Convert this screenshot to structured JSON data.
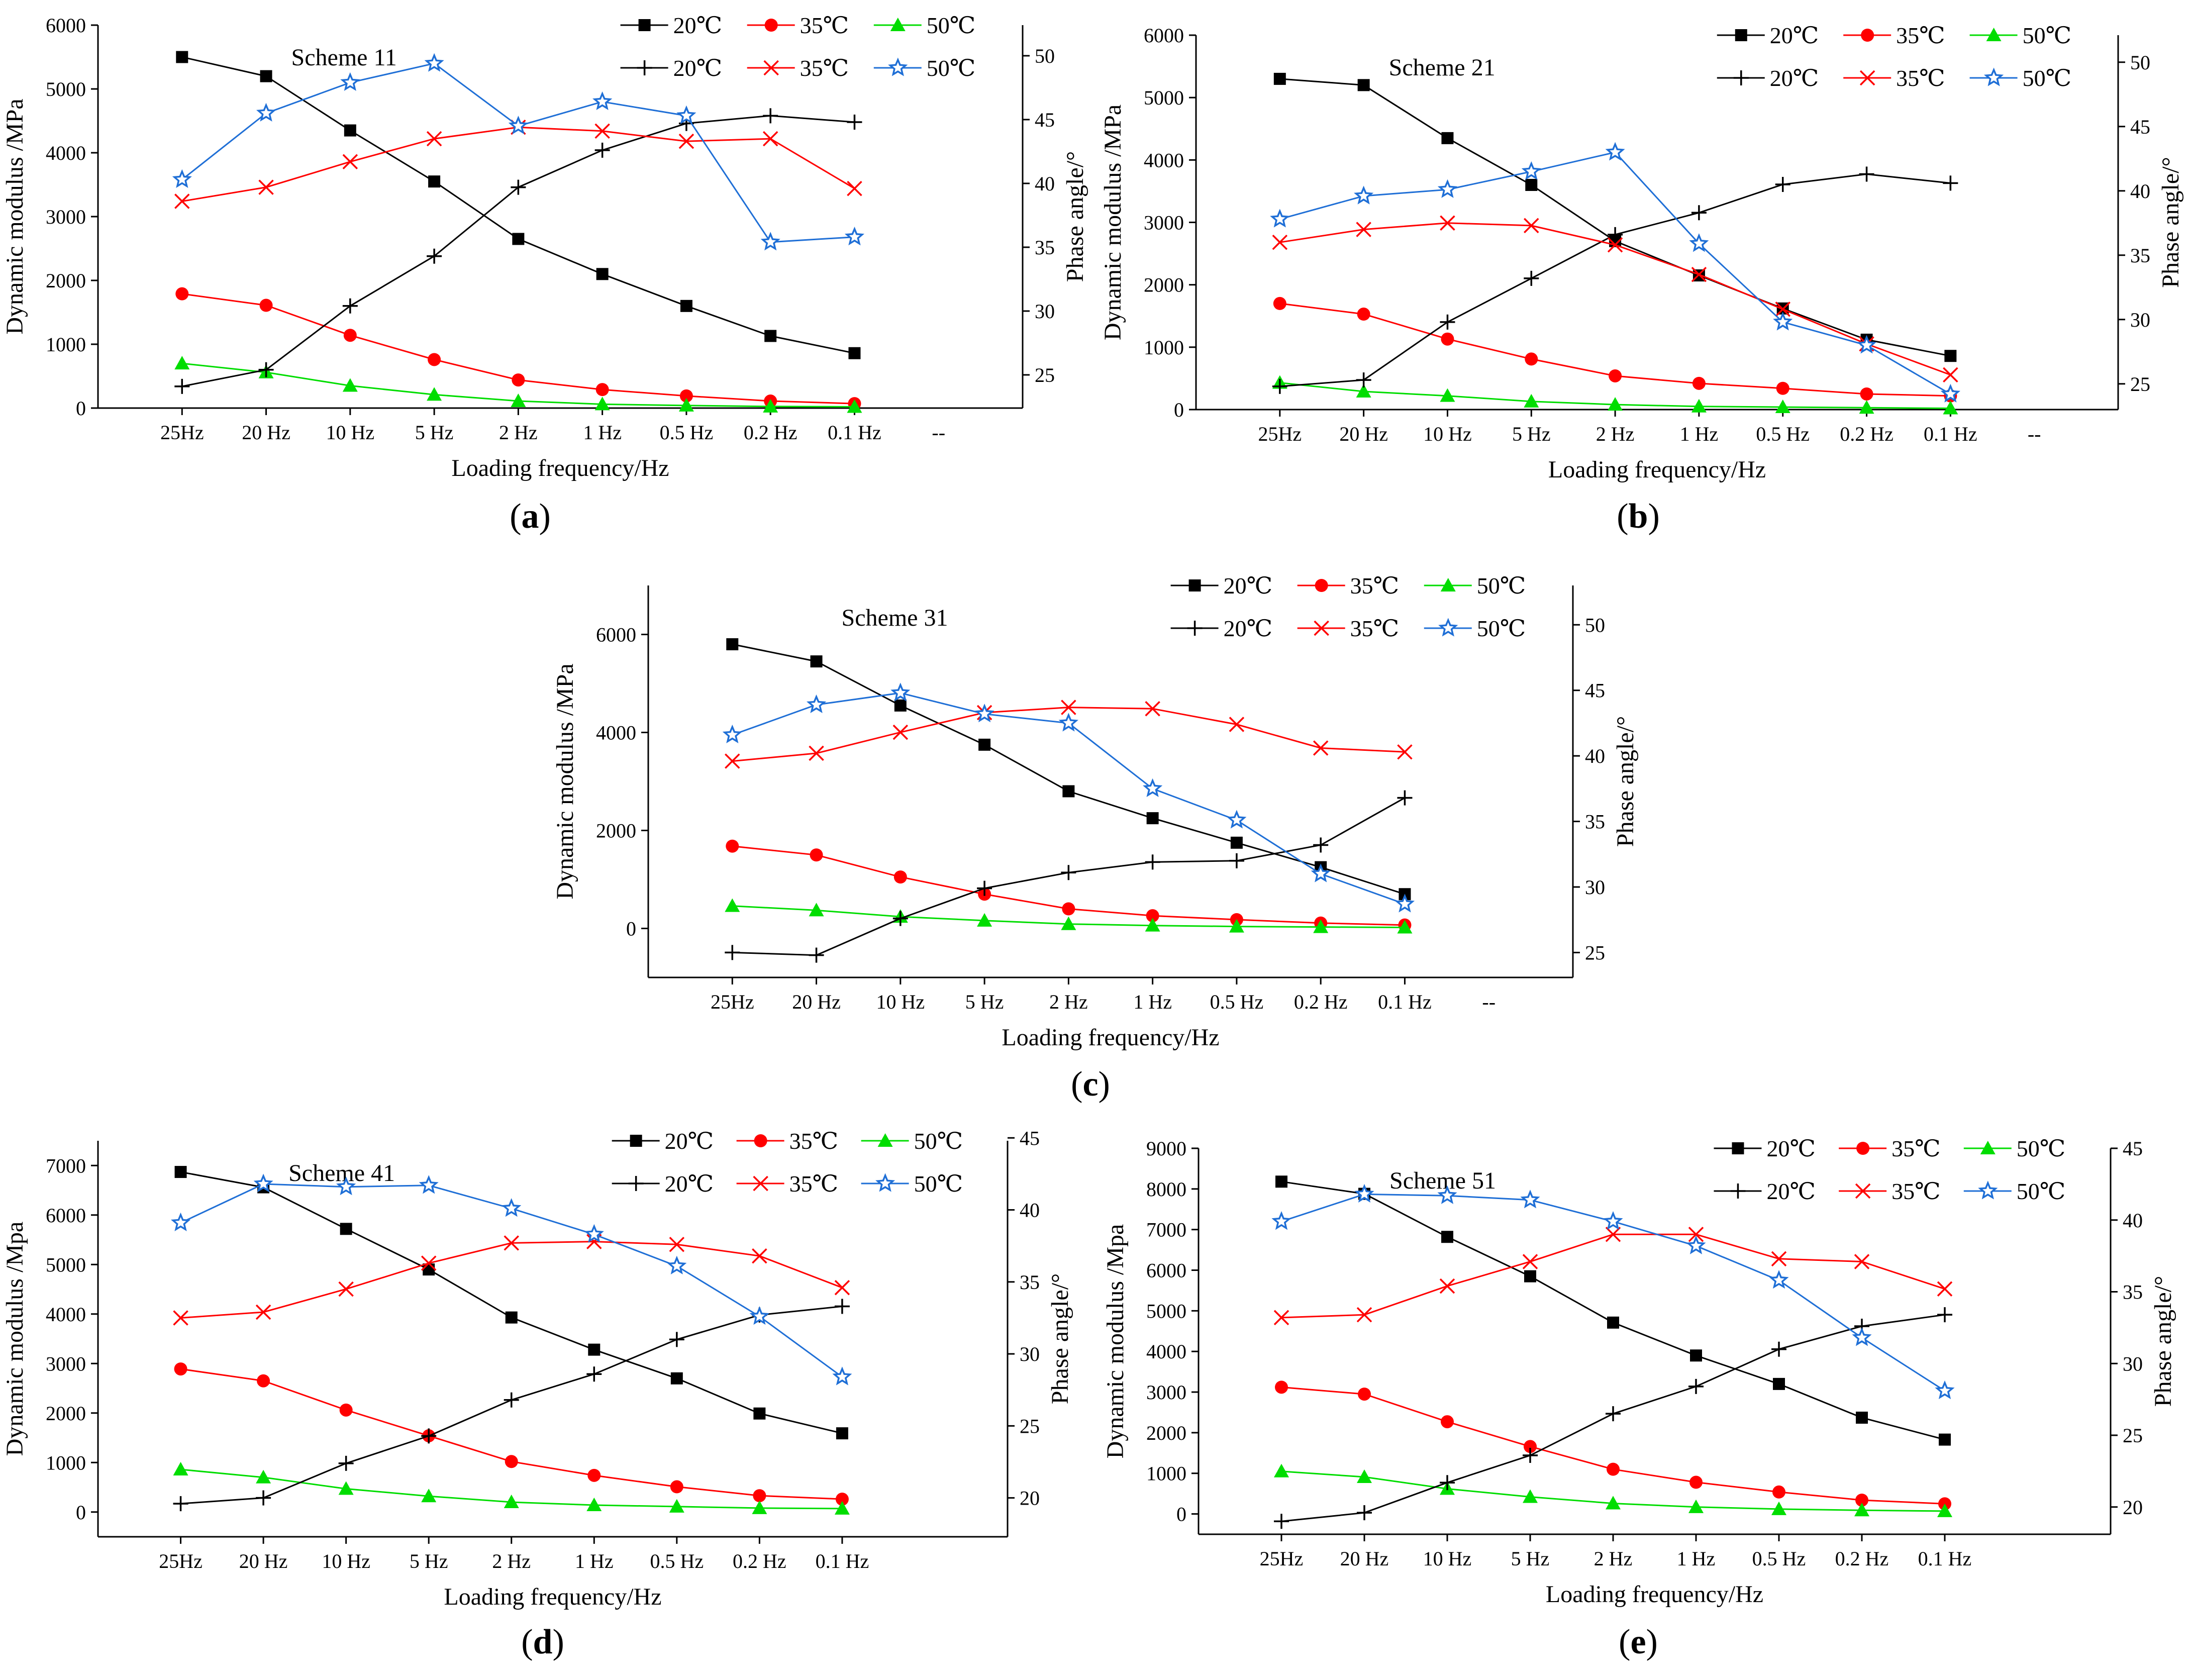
{
  "figure": {
    "colors": {
      "20C": "#000000",
      "35C": "#ff0000",
      "50C_modulus": "#00dd00",
      "50C_phase": "#1f6fd6",
      "axis": "#000000"
    },
    "icons": [
      "square-marker",
      "circle-marker",
      "triangle-marker",
      "plus-marker",
      "cross-marker",
      "star-marker"
    ]
  },
  "chart_data": [
    {
      "id": "a",
      "caption_letter": "a",
      "title": "Scheme 11",
      "type": "line",
      "xlabel": "Loading frequency/Hz",
      "ylabel_left": "Dynamic modulus /MPa",
      "ylabel_right": "Phase angle/°",
      "categories": [
        "25Hz",
        "20 Hz",
        "10 Hz",
        "5 Hz",
        "2 Hz",
        "1 Hz",
        "0.5 Hz",
        "0.2 Hz",
        "0.1 Hz"
      ],
      "extra_tick": "--",
      "ylim_left": [
        0,
        6000
      ],
      "yticks_left": [
        0,
        1000,
        2000,
        3000,
        4000,
        5000,
        6000
      ],
      "ylim_right": [
        22.4,
        52.4
      ],
      "yticks_right": [
        25,
        30,
        35,
        40,
        45,
        50
      ],
      "modulus_series": [
        {
          "name": "20℃",
          "values": [
            5500,
            5200,
            4350,
            3550,
            2650,
            2100,
            1600,
            1130,
            860
          ]
        },
        {
          "name": "35℃",
          "values": [
            1790,
            1610,
            1140,
            760,
            440,
            290,
            190,
            110,
            70
          ]
        },
        {
          "name": "50℃",
          "values": [
            700,
            560,
            350,
            210,
            110,
            60,
            40,
            25,
            20
          ]
        }
      ],
      "phase_series": [
        {
          "name": "20℃",
          "values": [
            24.1,
            25.4,
            30.4,
            34.3,
            39.7,
            42.6,
            44.7,
            45.3,
            44.8
          ]
        },
        {
          "name": "35℃",
          "values": [
            38.6,
            39.7,
            41.7,
            43.5,
            44.4,
            44.1,
            43.3,
            43.5,
            39.6
          ]
        },
        {
          "name": "50℃",
          "values": [
            40.3,
            45.5,
            47.9,
            49.4,
            44.5,
            46.4,
            45.3,
            35.4,
            35.8
          ]
        }
      ]
    },
    {
      "id": "b",
      "caption_letter": "b",
      "title": "Scheme 21",
      "type": "line",
      "xlabel": "Loading frequency/Hz",
      "ylabel_left": "Dynamic modulus /MPa",
      "ylabel_right": "Phase angle/°",
      "categories": [
        "25Hz",
        "20 Hz",
        "10 Hz",
        "5 Hz",
        "2 Hz",
        "1 Hz",
        "0.5 Hz",
        "0.2 Hz",
        "0.1 Hz"
      ],
      "extra_tick": "--",
      "ylim_left": [
        0,
        6000
      ],
      "yticks_left": [
        0,
        1000,
        2000,
        3000,
        4000,
        5000,
        6000
      ],
      "ylim_right": [
        23,
        52.1
      ],
      "yticks_right": [
        25,
        30,
        35,
        40,
        45,
        50
      ],
      "modulus_series": [
        {
          "name": "20℃",
          "values": [
            5300,
            5200,
            4350,
            3600,
            2700,
            2150,
            1620,
            1120,
            860
          ]
        },
        {
          "name": "35℃",
          "values": [
            1700,
            1530,
            1130,
            810,
            540,
            420,
            340,
            250,
            220
          ]
        },
        {
          "name": "50℃",
          "values": [
            430,
            290,
            220,
            130,
            80,
            50,
            40,
            30,
            20
          ]
        }
      ],
      "phase_series": [
        {
          "name": "20℃",
          "values": [
            24.8,
            25.3,
            29.8,
            33.2,
            36.6,
            38.3,
            40.5,
            41.3,
            40.6
          ]
        },
        {
          "name": "35℃",
          "values": [
            36.0,
            37.0,
            37.5,
            37.3,
            35.8,
            33.5,
            30.8,
            28.1,
            25.7
          ]
        },
        {
          "name": "50℃",
          "values": [
            37.8,
            39.6,
            40.1,
            41.5,
            43.0,
            35.9,
            29.8,
            28.0,
            24.2
          ]
        }
      ]
    },
    {
      "id": "c",
      "caption_letter": "c",
      "title": "Scheme 31",
      "type": "line",
      "xlabel": "Loading frequency/Hz",
      "ylabel_left": "Dynamic modulus /MPa",
      "ylabel_right": "Phase angle/°",
      "categories": [
        "25Hz",
        "20 Hz",
        "10 Hz",
        "5 Hz",
        "2 Hz",
        "1 Hz",
        "0.5 Hz",
        "0.2 Hz",
        "0.1 Hz"
      ],
      "extra_tick": "--",
      "ylim_left": [
        -1000,
        7000
      ],
      "yticks_left": [
        0,
        2000,
        4000,
        6000
      ],
      "ylim_right": [
        23.1,
        53.0
      ],
      "yticks_right": [
        25,
        30,
        35,
        40,
        45,
        50
      ],
      "modulus_series": [
        {
          "name": "20℃",
          "values": [
            5800,
            5450,
            4550,
            3750,
            2800,
            2250,
            1750,
            1250,
            700
          ]
        },
        {
          "name": "35℃",
          "values": [
            1680,
            1500,
            1050,
            700,
            400,
            260,
            180,
            110,
            70
          ]
        },
        {
          "name": "50℃",
          "values": [
            460,
            370,
            240,
            160,
            90,
            60,
            40,
            30,
            20
          ]
        }
      ],
      "phase_series": [
        {
          "name": "20℃",
          "values": [
            25.0,
            24.8,
            27.6,
            29.9,
            31.1,
            31.9,
            32.0,
            33.2,
            36.8
          ]
        },
        {
          "name": "35℃",
          "values": [
            39.6,
            40.2,
            41.8,
            43.3,
            43.7,
            43.6,
            42.4,
            40.6,
            40.3
          ]
        },
        {
          "name": "50℃",
          "values": [
            41.6,
            43.9,
            44.8,
            43.2,
            42.5,
            37.5,
            35.1,
            31.0,
            28.7
          ]
        }
      ]
    },
    {
      "id": "d",
      "caption_letter": "d",
      "title": "Scheme 41",
      "type": "line",
      "xlabel": "Loading frequency/Hz",
      "ylabel_left": "Dynamic modulus /Mpa",
      "ylabel_right": "Phase angle/°",
      "categories": [
        "25Hz",
        "20 Hz",
        "10 Hz",
        "5 Hz",
        "2 Hz",
        "1 Hz",
        "0.5 Hz",
        "0.2 Hz",
        "0.1 Hz"
      ],
      "extra_tick": "",
      "ylim_left": [
        -500,
        7500
      ],
      "yticks_left": [
        0,
        1000,
        2000,
        3000,
        4000,
        5000,
        6000,
        7000
      ],
      "ylim_right": [
        17.3,
        44.8
      ],
      "yticks_right": [
        20,
        25,
        30,
        35,
        40,
        45
      ],
      "modulus_series": [
        {
          "name": "20℃",
          "values": [
            6870,
            6560,
            5720,
            4900,
            3930,
            3280,
            2700,
            1990,
            1590
          ]
        },
        {
          "name": "35℃",
          "values": [
            2890,
            2650,
            2060,
            1540,
            1020,
            740,
            510,
            330,
            260
          ]
        },
        {
          "name": "50℃",
          "values": [
            860,
            700,
            470,
            320,
            200,
            140,
            110,
            80,
            70
          ]
        }
      ],
      "phase_series": [
        {
          "name": "20℃",
          "values": [
            19.6,
            20.0,
            22.4,
            24.3,
            26.8,
            28.6,
            31.0,
            32.7,
            33.3
          ]
        },
        {
          "name": "35℃",
          "values": [
            32.5,
            32.9,
            34.5,
            36.3,
            37.7,
            37.8,
            37.6,
            36.8,
            34.6
          ]
        },
        {
          "name": "50℃",
          "values": [
            39.1,
            41.8,
            41.6,
            41.7,
            40.1,
            38.3,
            36.1,
            32.6,
            28.4
          ]
        }
      ]
    },
    {
      "id": "e",
      "caption_letter": "e",
      "title": "Scheme 51",
      "type": "line",
      "xlabel": "Loading frequency/Hz",
      "ylabel_left": "Dynamic modulus /Mpa",
      "ylabel_right": "Phase angle/°",
      "categories": [
        "25Hz",
        "20 Hz",
        "10 Hz",
        "5 Hz",
        "2 Hz",
        "1 Hz",
        "0.5 Hz",
        "0.2 Hz",
        "0.1 Hz"
      ],
      "extra_tick": "",
      "ylim_left": [
        -500,
        9000
      ],
      "yticks_left": [
        0,
        1000,
        2000,
        3000,
        4000,
        5000,
        6000,
        7000,
        8000,
        9000
      ],
      "ylim_right": [
        18.1,
        45.0
      ],
      "yticks_right": [
        20,
        25,
        30,
        35,
        40,
        45
      ],
      "modulus_series": [
        {
          "name": "20℃",
          "values": [
            8180,
            7880,
            6820,
            5850,
            4710,
            3900,
            3200,
            2370,
            1830
          ]
        },
        {
          "name": "35℃",
          "values": [
            3120,
            2950,
            2270,
            1660,
            1100,
            780,
            540,
            340,
            250
          ]
        },
        {
          "name": "50℃",
          "values": [
            1050,
            910,
            620,
            420,
            260,
            170,
            120,
            90,
            70
          ]
        }
      ],
      "phase_series": [
        {
          "name": "20℃",
          "values": [
            19.0,
            19.6,
            21.7,
            23.6,
            26.5,
            28.4,
            31.0,
            32.6,
            33.4
          ]
        },
        {
          "name": "35℃",
          "values": [
            33.2,
            33.4,
            35.4,
            37.1,
            39.0,
            39.0,
            37.3,
            37.1,
            35.2
          ]
        },
        {
          "name": "50℃",
          "values": [
            39.9,
            41.8,
            41.7,
            41.4,
            39.9,
            38.2,
            35.8,
            31.8,
            28.1
          ]
        }
      ]
    }
  ]
}
